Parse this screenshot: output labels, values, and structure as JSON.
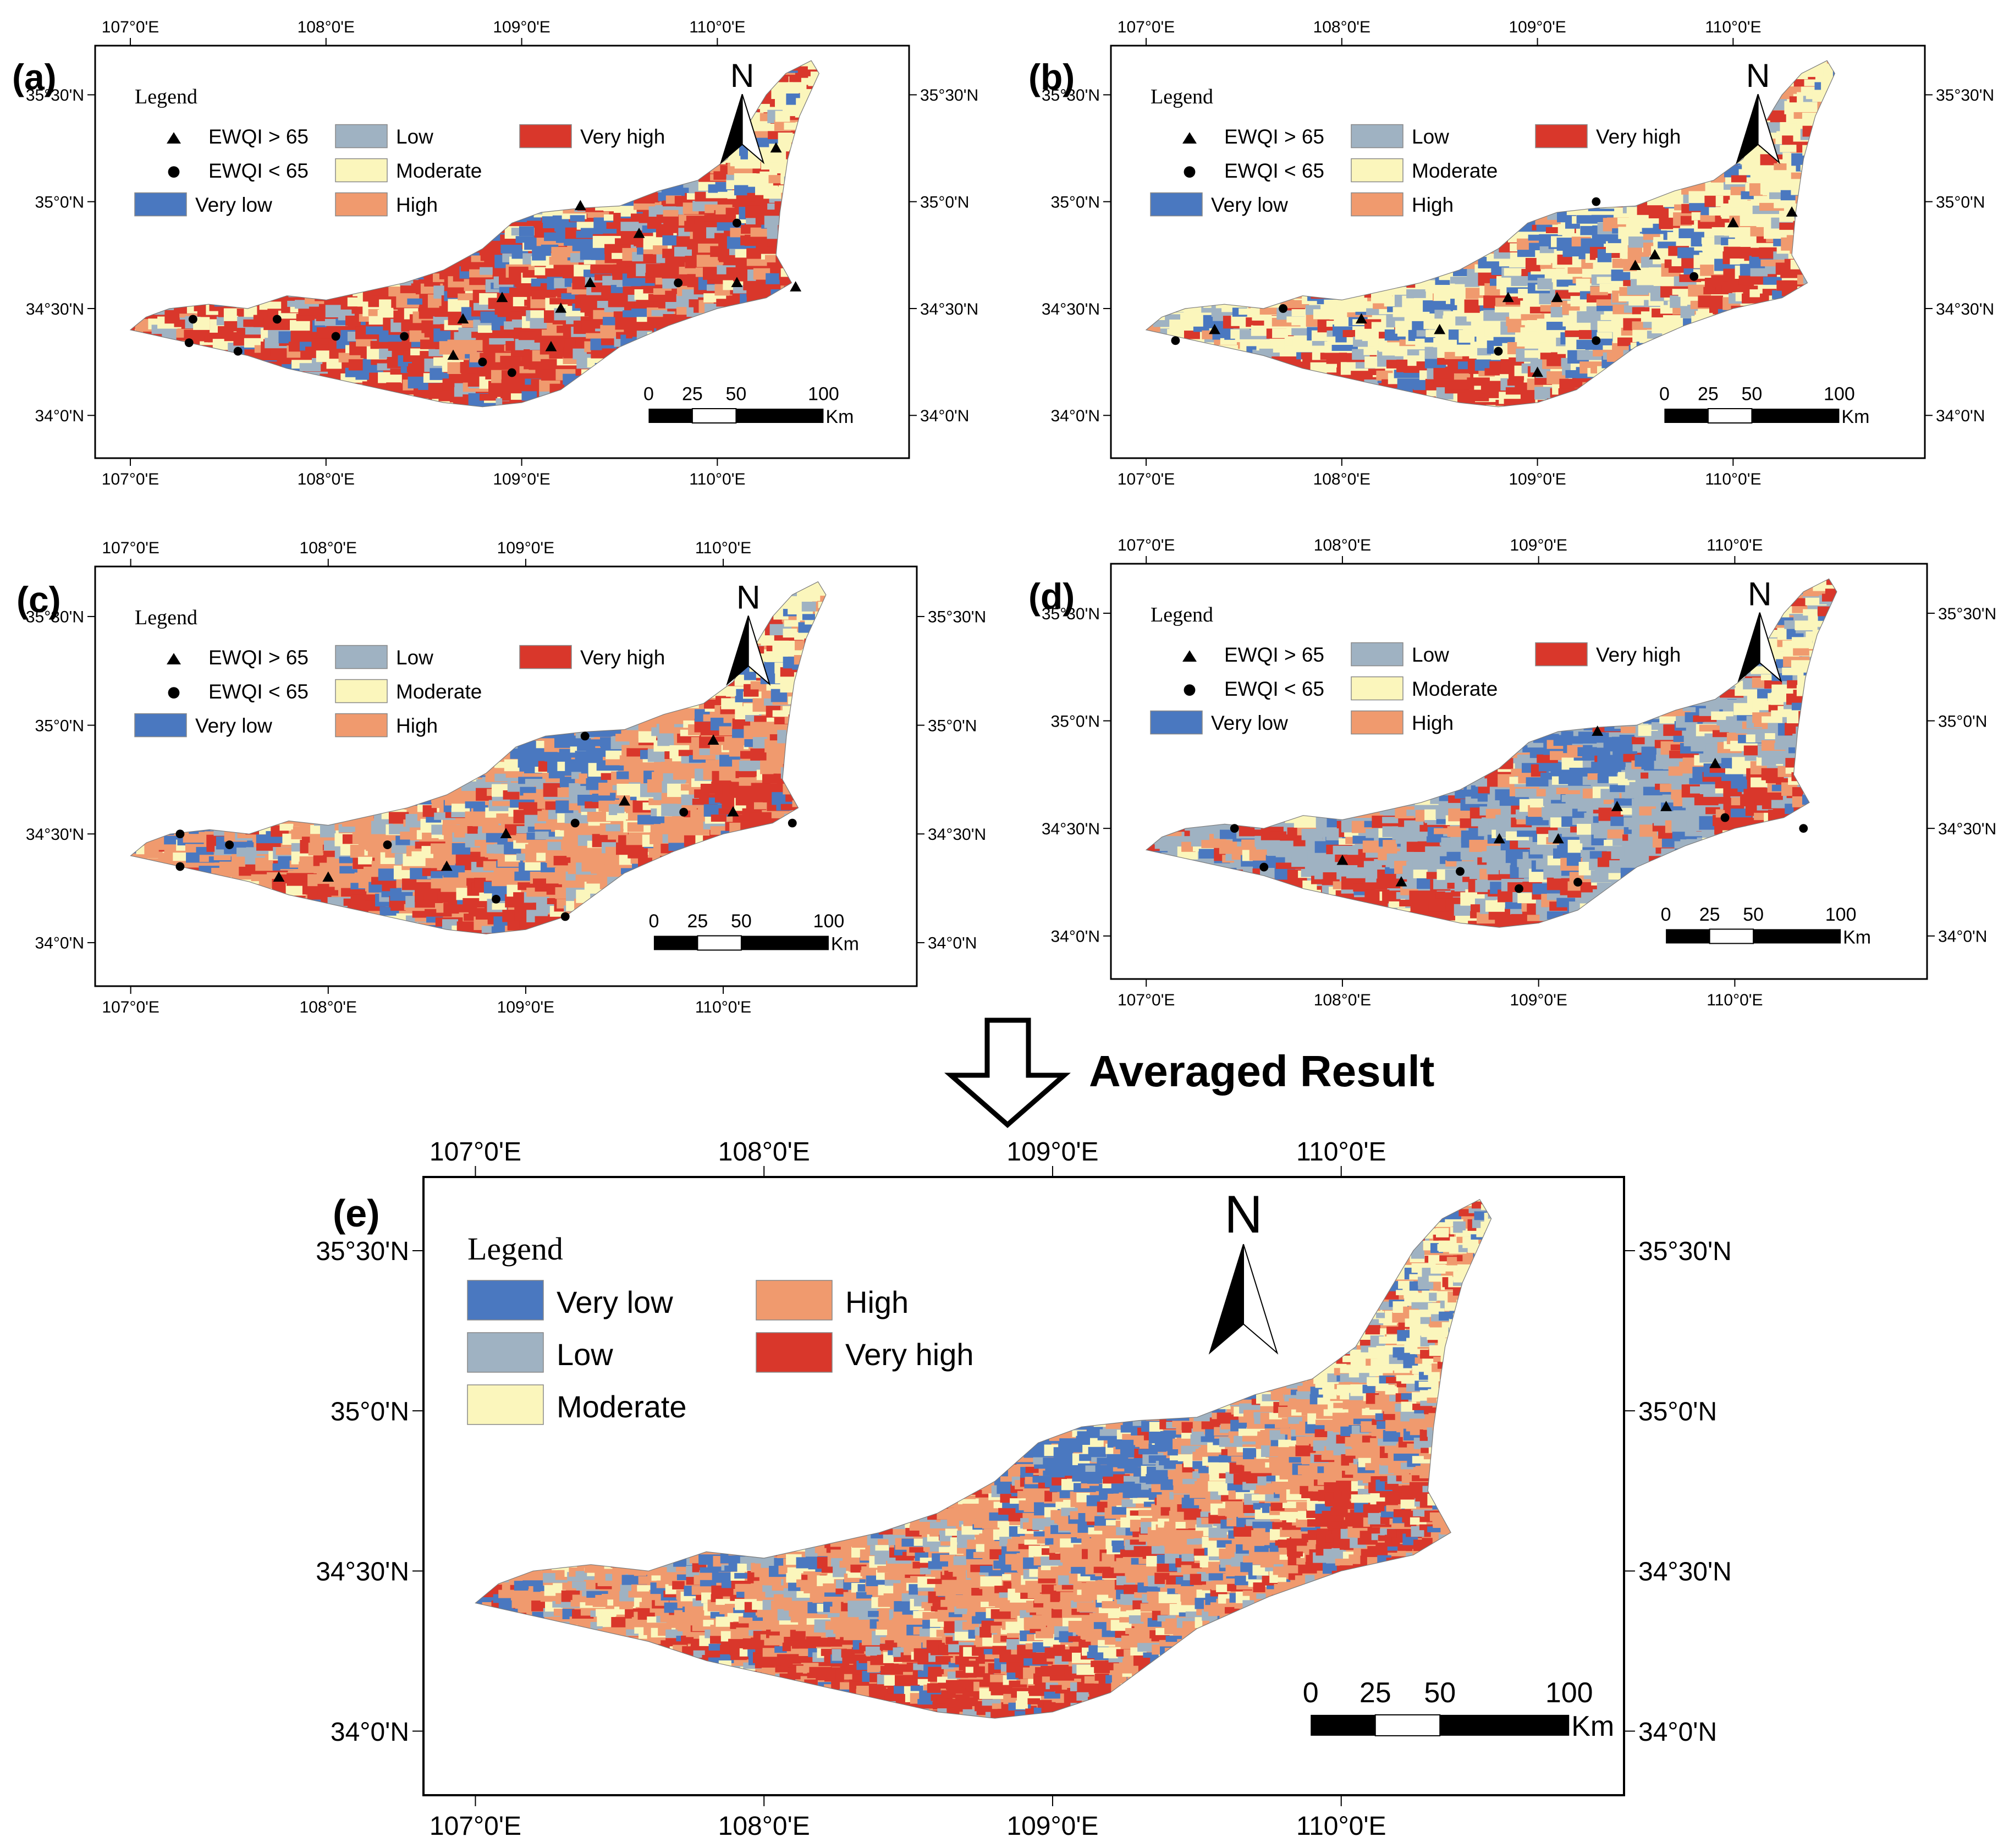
{
  "colors": {
    "very_low": "#4a78c0",
    "low": "#9fb2c2",
    "moderate": "#fbf6bc",
    "high": "#f09a6e",
    "very_high": "#d9372b"
  },
  "panels": [
    {
      "tag": "(a)",
      "legend": {
        "title": "Legend",
        "items": [
          "EWQI > 65",
          "EWQI < 65",
          "Very low",
          "Low",
          "Moderate",
          "High",
          "Very high"
        ]
      },
      "lon_ticks": [
        "107°0'E",
        "108°0'E",
        "109°0'E",
        "110°0'E"
      ],
      "lat_ticks": [
        "35°30'N",
        "35°0'N",
        "34°30'N",
        "34°0'N"
      ],
      "north": "N",
      "scale": {
        "labels": [
          "0",
          "25",
          "50",
          "100"
        ],
        "unit": "Km"
      },
      "dominant": "very_high",
      "points": [
        [
          107.32,
          34.45,
          0
        ],
        [
          107.3,
          34.34,
          0
        ],
        [
          107.55,
          34.3,
          0
        ],
        [
          107.75,
          34.45,
          0
        ],
        [
          108.05,
          34.37,
          0
        ],
        [
          108.4,
          34.37,
          0
        ],
        [
          108.65,
          34.28,
          1
        ],
        [
          108.8,
          34.25,
          0
        ],
        [
          108.95,
          34.2,
          0
        ],
        [
          109.15,
          34.32,
          1
        ],
        [
          108.7,
          34.45,
          1
        ],
        [
          108.9,
          34.55,
          1
        ],
        [
          109.2,
          34.5,
          1
        ],
        [
          109.35,
          34.62,
          1
        ],
        [
          109.8,
          34.62,
          0
        ],
        [
          110.1,
          34.62,
          1
        ],
        [
          110.4,
          34.6,
          1
        ],
        [
          109.6,
          34.85,
          1
        ],
        [
          110.1,
          34.9,
          0
        ],
        [
          110.3,
          35.25,
          1
        ],
        [
          109.3,
          34.98,
          1
        ]
      ]
    },
    {
      "tag": "(b)",
      "legend": {
        "title": "Legend",
        "items": [
          "EWQI > 65",
          "EWQI < 65",
          "Very low",
          "Low",
          "Moderate",
          "High",
          "Very high"
        ]
      },
      "lon_ticks": [
        "107°0'E",
        "108°0'E",
        "109°0'E",
        "110°0'E"
      ],
      "lat_ticks": [
        "35°30'N",
        "35°0'N",
        "34°30'N",
        "34°0'N"
      ],
      "north": "N",
      "scale": {
        "labels": [
          "0",
          "25",
          "50",
          "100"
        ],
        "unit": "Km"
      },
      "dominant": "moderate",
      "points": [
        [
          107.15,
          34.35,
          0
        ],
        [
          107.35,
          34.4,
          1
        ],
        [
          107.7,
          34.5,
          0
        ],
        [
          108.1,
          34.45,
          1
        ],
        [
          108.5,
          34.4,
          1
        ],
        [
          108.8,
          34.3,
          0
        ],
        [
          109.0,
          34.2,
          1
        ],
        [
          109.3,
          34.35,
          0
        ],
        [
          109.1,
          34.55,
          1
        ],
        [
          108.85,
          34.55,
          1
        ],
        [
          109.5,
          34.7,
          1
        ],
        [
          109.8,
          34.65,
          0
        ],
        [
          110.0,
          34.9,
          1
        ],
        [
          110.3,
          34.95,
          1
        ],
        [
          109.3,
          35.0,
          0
        ],
        [
          109.6,
          34.75,
          1
        ]
      ]
    },
    {
      "tag": "(c)",
      "legend": {
        "title": "Legend",
        "items": [
          "EWQI > 65",
          "EWQI < 65",
          "Very low",
          "Low",
          "Moderate",
          "High",
          "Very high"
        ]
      },
      "lon_ticks": [
        "107°0'E",
        "108°0'E",
        "109°0'E",
        "110°0'E"
      ],
      "lat_ticks": [
        "35°30'N",
        "35°0'N",
        "34°30'N",
        "34°0'N"
      ],
      "north": "N",
      "scale": {
        "labels": [
          "0",
          "25",
          "50",
          "100"
        ],
        "unit": "Km"
      },
      "dominant": "high",
      "points": [
        [
          107.25,
          34.5,
          0
        ],
        [
          107.25,
          34.35,
          0
        ],
        [
          107.5,
          34.45,
          0
        ],
        [
          107.75,
          34.3,
          1
        ],
        [
          108.0,
          34.3,
          1
        ],
        [
          108.3,
          34.45,
          0
        ],
        [
          108.6,
          34.35,
          1
        ],
        [
          108.9,
          34.5,
          1
        ],
        [
          109.25,
          34.55,
          0
        ],
        [
          109.5,
          34.65,
          1
        ],
        [
          109.8,
          34.6,
          0
        ],
        [
          110.05,
          34.6,
          1
        ],
        [
          110.35,
          34.55,
          0
        ],
        [
          109.3,
          34.95,
          0
        ],
        [
          109.95,
          34.93,
          1
        ],
        [
          108.85,
          34.2,
          0
        ],
        [
          109.2,
          34.12,
          0
        ]
      ]
    },
    {
      "tag": "(d)",
      "legend": {
        "title": "Legend",
        "items": [
          "EWQI > 65",
          "EWQI < 65",
          "Very low",
          "Low",
          "Moderate",
          "High",
          "Very high"
        ]
      },
      "lon_ticks": [
        "107°0'E",
        "108°0'E",
        "109°0'E",
        "110°0'E"
      ],
      "lat_ticks": [
        "35°30'N",
        "35°0'N",
        "34°30'N",
        "34°0'N"
      ],
      "north": "N",
      "scale": {
        "labels": [
          "0",
          "25",
          "50",
          "100"
        ],
        "unit": "Km"
      },
      "dominant": "low",
      "points": [
        [
          107.45,
          34.5,
          0
        ],
        [
          107.6,
          34.32,
          0
        ],
        [
          108.0,
          34.35,
          1
        ],
        [
          108.3,
          34.25,
          1
        ],
        [
          108.6,
          34.3,
          0
        ],
        [
          108.9,
          34.22,
          0
        ],
        [
          109.2,
          34.25,
          0
        ],
        [
          109.1,
          34.45,
          1
        ],
        [
          108.8,
          34.45,
          1
        ],
        [
          109.4,
          34.6,
          1
        ],
        [
          109.65,
          34.6,
          1
        ],
        [
          109.95,
          34.55,
          0
        ],
        [
          110.35,
          34.5,
          0
        ],
        [
          109.9,
          34.8,
          1
        ],
        [
          109.3,
          34.95,
          1
        ]
      ]
    }
  ],
  "arrow_caption": "Averaged Result",
  "main_panel": {
    "tag": "(e)",
    "legend": {
      "title": "Legend",
      "items": [
        "Very low",
        "High",
        "Low",
        "Very high",
        "Moderate"
      ]
    },
    "lon_ticks": [
      "107°0'E",
      "108°0'E",
      "109°0'E",
      "110°0'E"
    ],
    "lat_ticks": [
      "35°30'N",
      "35°0'N",
      "34°30'N",
      "34°0'N"
    ],
    "north": "N",
    "scale": {
      "labels": [
        "0",
        "25",
        "50",
        "100"
      ],
      "unit": "Km"
    }
  },
  "map_extent": {
    "lon_min": 106.82,
    "lon_max": 110.98,
    "lat_min": 33.8,
    "lat_max": 35.73
  }
}
